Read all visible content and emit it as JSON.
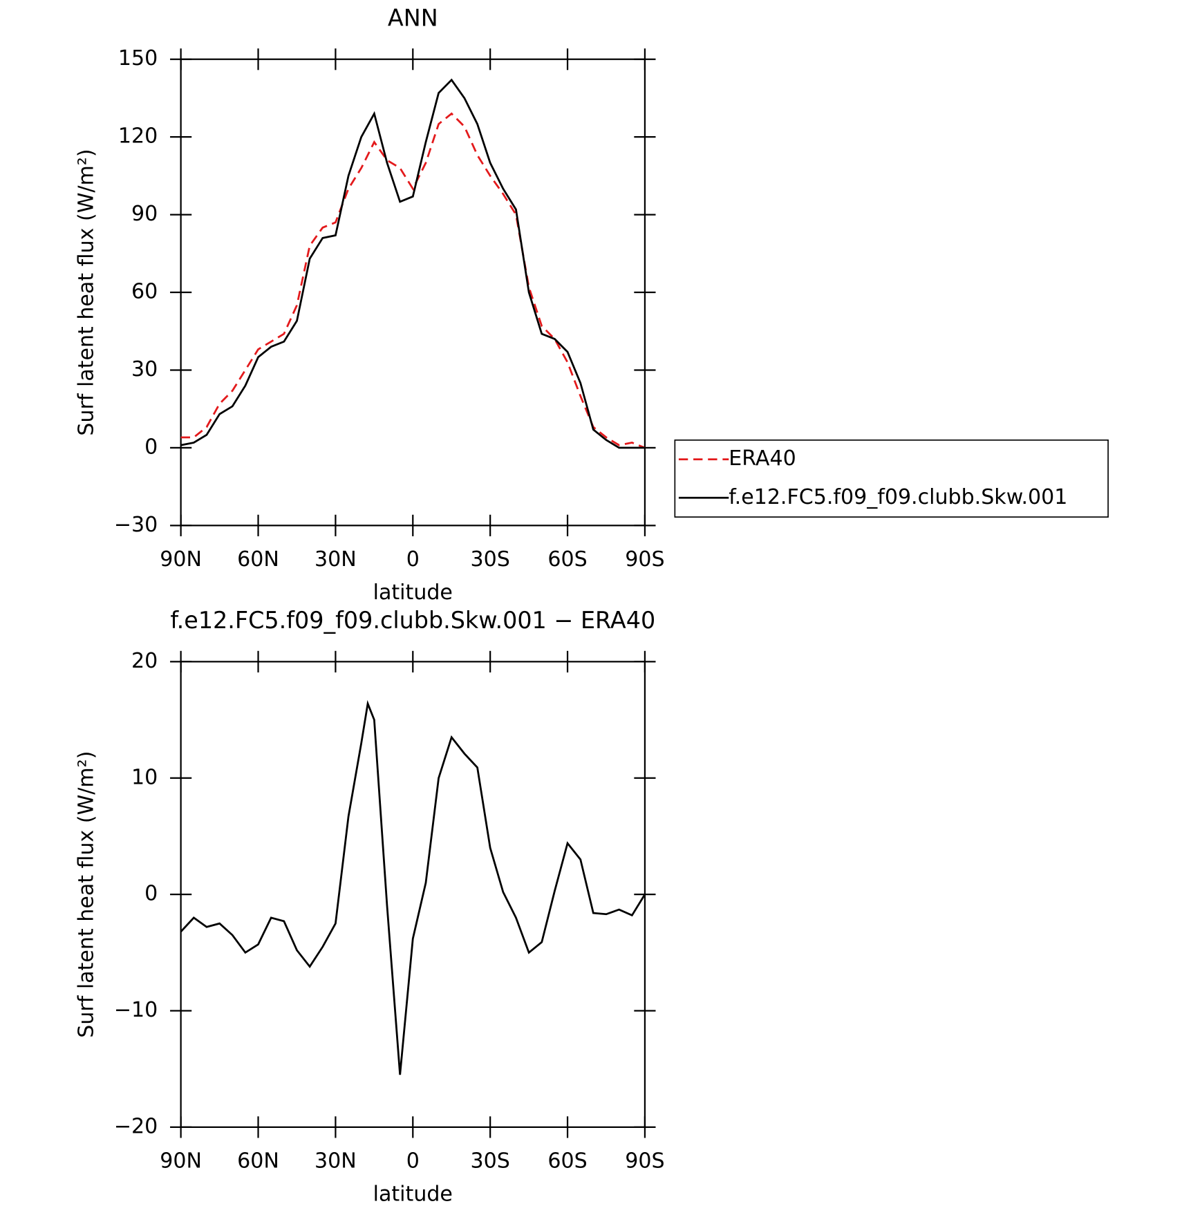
{
  "chart_data": [
    {
      "type": "line",
      "title": "ANN",
      "xlabel": "latitude",
      "ylabel": "Surf latent heat flux (W/m²)",
      "x": [
        90,
        85,
        80,
        75,
        70,
        65,
        60,
        55,
        50,
        45,
        40,
        35,
        30,
        25,
        20,
        15,
        10,
        5,
        0,
        -5,
        -10,
        -15,
        -20,
        -25,
        -30,
        -35,
        -40,
        -45,
        -50,
        -55,
        -60,
        -65,
        -70,
        -75,
        -80,
        -85,
        -90
      ],
      "series": [
        {
          "name": "ERA40",
          "color": "#e31a1c",
          "dashed": true,
          "values": [
            4,
            4,
            8,
            17,
            22,
            30,
            38,
            41,
            44,
            55,
            78,
            85,
            87,
            100,
            108,
            118,
            111,
            108,
            100,
            110,
            125,
            129,
            124,
            113,
            105,
            98,
            90,
            62,
            47,
            42,
            33,
            20,
            8,
            4,
            1,
            2,
            0
          ]
        },
        {
          "name": "f.e12.FC5.f09_f09.clubb.Skw.001",
          "color": "#000000",
          "dashed": false,
          "values": [
            1,
            2,
            5,
            13,
            16,
            24,
            35,
            39,
            41,
            49,
            73,
            81,
            82,
            105,
            120,
            129,
            110,
            95,
            97,
            118,
            137,
            142,
            135,
            125,
            110,
            100,
            92,
            60,
            44,
            42,
            37,
            25,
            7,
            3,
            0,
            0,
            0
          ]
        }
      ],
      "xlim": [
        90,
        -90
      ],
      "xticks": [
        {
          "value": 90,
          "label": "90N"
        },
        {
          "value": 60,
          "label": "60N"
        },
        {
          "value": 30,
          "label": "30N"
        },
        0,
        {
          "value": -30,
          "label": "30S"
        },
        {
          "value": -60,
          "label": "60S"
        },
        {
          "value": -90,
          "label": "90S"
        }
      ],
      "ylim": [
        -30,
        150
      ],
      "yticks": [
        {
          "value": -30,
          "label": "−30"
        },
        0,
        30,
        60,
        90,
        120,
        150
      ]
    },
    {
      "type": "line",
      "title": "f.e12.FC5.f09_f09.clubb.Skw.001 − ERA40",
      "xlabel": "latitude",
      "ylabel": "Surf latent heat flux (W/m²)",
      "x": [
        90,
        85,
        80,
        75,
        70,
        65,
        60,
        55,
        50,
        45,
        40,
        35,
        30,
        25,
        20,
        17.5,
        15,
        10,
        5,
        0,
        -5,
        -10,
        -15,
        -20,
        -25,
        -30,
        -35,
        -40,
        -45,
        -50,
        -55,
        -60,
        -65,
        -70,
        -75,
        -80,
        -85,
        -90
      ],
      "series": [
        {
          "color": "#000000",
          "dashed": false,
          "values": [
            -3.2,
            -2.0,
            -2.8,
            -2.5,
            -3.5,
            -5.0,
            -4.3,
            -2.0,
            -2.3,
            -4.8,
            -6.2,
            -4.5,
            -2.5,
            6.7,
            13,
            16.4,
            15,
            -1,
            -15.5,
            -3.8,
            1,
            10,
            13.5,
            12.1,
            10.9,
            4.0,
            0.2,
            -2.0,
            -5.0,
            -4.1,
            0.3,
            4.4,
            3.0,
            -1.6,
            -1.7,
            -1.3,
            -1.8,
            0
          ]
        }
      ],
      "xlim": [
        90,
        -90
      ],
      "xticks": [
        {
          "value": 90,
          "label": "90N"
        },
        {
          "value": 60,
          "label": "60N"
        },
        {
          "value": 30,
          "label": "30N"
        },
        0,
        {
          "value": -30,
          "label": "30S"
        },
        {
          "value": -60,
          "label": "60S"
        },
        {
          "value": -90,
          "label": "90S"
        }
      ],
      "ylim": [
        -20,
        20
      ],
      "yticks": [
        {
          "value": -20,
          "label": "−20"
        },
        {
          "value": -10,
          "label": "−10"
        },
        0,
        10,
        20
      ]
    }
  ]
}
